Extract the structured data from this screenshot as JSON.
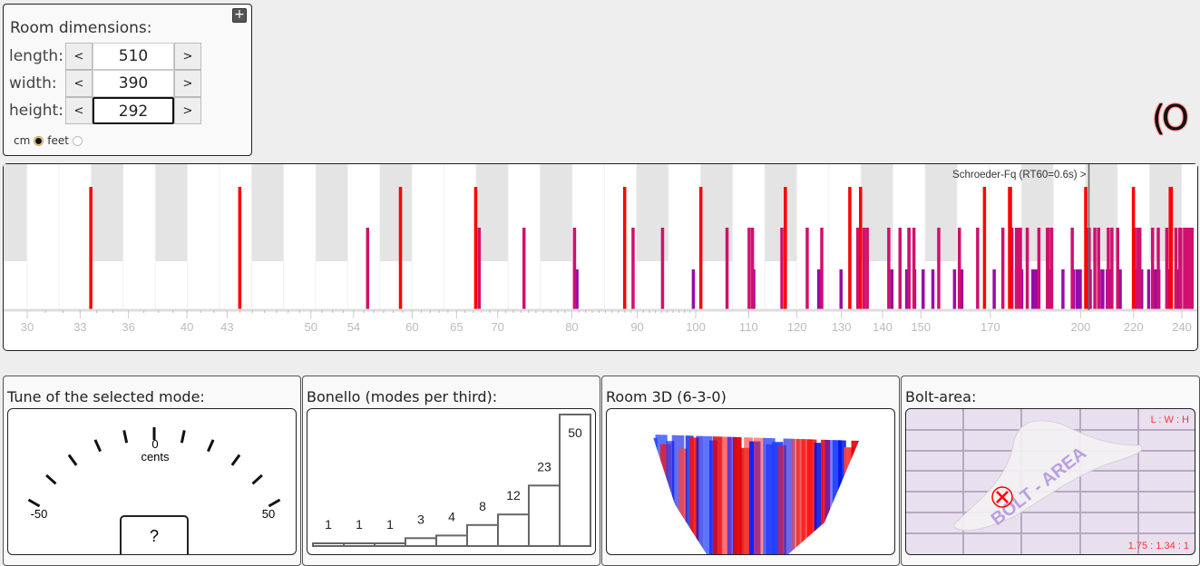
{
  "room": {
    "title": "Room dimensions:",
    "expand_label": "+",
    "fields": [
      {
        "label": "length:",
        "value": "510"
      },
      {
        "label": "width:",
        "value": "390"
      },
      {
        "label": "height:",
        "value": "292"
      }
    ],
    "dec_label": "<",
    "inc_label": ">",
    "units": [
      {
        "label": "cm",
        "selected": true
      },
      {
        "label": "feet",
        "selected": false
      }
    ]
  },
  "logo_text": "(O",
  "mode_chart": {
    "type": "bar",
    "x_scale": "log",
    "xlim": [
      30,
      240
    ],
    "ticks": [
      "30",
      "33",
      "36",
      "40",
      "43",
      "50",
      "54",
      "60",
      "65",
      "70",
      "80",
      "90",
      "100",
      "110",
      "120",
      "130",
      "140",
      "150",
      "170",
      "200",
      "220",
      "240"
    ],
    "schroeder_label": "Schroeder-Fq (RT60=0.6s) >",
    "schroeder_hz": 203,
    "speed_of_sound": 343,
    "colors": {
      "axial": "#ff0000",
      "tangential": "#d0106e",
      "oblique": "#9a0aa8"
    }
  },
  "tune": {
    "title": "Tune of the selected mode:",
    "center_label": "0",
    "unit": "cents",
    "min_label": "-50",
    "max_label": "50",
    "value": "?"
  },
  "chart_data": {
    "type": "bar",
    "title": "Bonello (modes per third):",
    "values": [
      1,
      1,
      1,
      3,
      4,
      8,
      12,
      23,
      50
    ],
    "labels": [
      "1",
      "1",
      "1",
      "3",
      "4",
      "8",
      "12",
      "23",
      "50"
    ]
  },
  "room3d": {
    "title": "Room 3D (6-3-0)"
  },
  "bolt": {
    "title": "Bolt-area:",
    "ratio_header": "L : W : H",
    "ratio": "1.75 : 1.34 : 1",
    "watermark": "BOLT - AREA"
  }
}
